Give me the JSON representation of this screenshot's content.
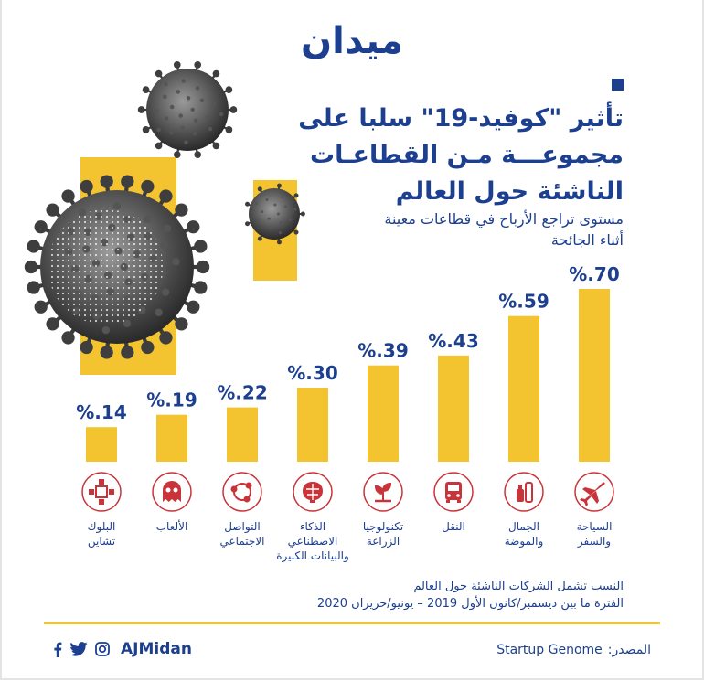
{
  "logo": "ميدان",
  "title_lines": [
    "تأثير \"كوفيد-19\" سلبا على",
    "مجموعـــة مـن القطاعـات",
    "الناشئة حول العالم"
  ],
  "subtitle_lines": [
    "مستوى تراجع الأرباح في قطاعات معينة",
    "أثناء الجائحة"
  ],
  "chart_data": {
    "type": "bar",
    "categories": [
      "البلوك|تشاين",
      "الألعاب",
      "التواصل|الاجتماعي",
      "الذكاء|الاصطناعي|والبيانات الكبيرة",
      "تكنولوجيا|الزراعة",
      "النقل",
      "الجمال|والموضة",
      "السياحة|والسفر"
    ],
    "values": [
      14,
      19,
      22,
      30,
      39,
      43,
      59,
      70
    ],
    "value_labels": [
      "%.14",
      "%.19",
      "%.22",
      "%.30",
      "%.39",
      "%.43",
      "%.59",
      "%.70"
    ],
    "icons": [
      "blockchain-icon",
      "gaming-icon",
      "social-network-icon",
      "ai-brain-icon",
      "agritech-plant-icon",
      "bus-icon",
      "beauty-bottle-icon",
      "airplane-icon"
    ],
    "title": "",
    "xlabel": "",
    "ylabel": "",
    "ylim": [
      0,
      70
    ],
    "bar_color": "#f4c430",
    "label_color": "#1d3f8f",
    "icon_color": "#c9343a"
  },
  "notes": [
    "النسب تشمل الشركات الناشئة حول العالم",
    "الفترة ما بين ديسمبر/كانون الأول 2019 – يونيو/حزيران 2020"
  ],
  "footer": {
    "handle": "AJMidan",
    "social_icons": [
      "facebook-icon",
      "twitter-icon",
      "instagram-icon"
    ],
    "source_label": "المصدر:",
    "source": "Startup Genome"
  },
  "colors": {
    "brand_blue": "#1d3f8f",
    "accent_yellow": "#f4c430",
    "icon_red": "#c9343a"
  }
}
